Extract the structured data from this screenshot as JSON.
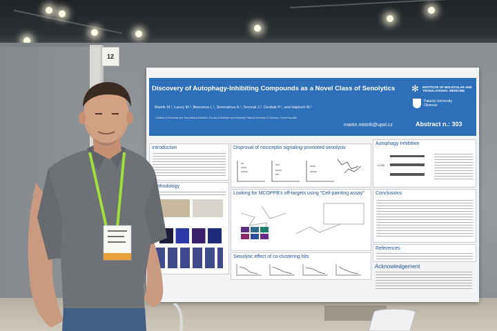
{
  "booth": {
    "number": "12"
  },
  "poster": {
    "title": "Discovery of Autophagy-Inhibiting Compounds as a Novel Class of Senolytics",
    "authors": "Mistrik M.¹, Lacey M.², Beresova L.¹, Srovnalova A.¹, Srovnal J.¹, Dzubak P.¹, and Hajduch M.¹",
    "affiliation": "¹ Institute of Molecular and Translational Medicine, Faculty of Medicine and Dentistry, Palacký University in Olomouc, Czech Republic",
    "email": "martin.mistrik@upol.cz",
    "abstract_number": "Abstract n.: 303",
    "institute_name": "INSTITUTE OF MOLECULAR AND TRANSLATIONAL MEDICINE",
    "university_name": "Palacký University Olomouc",
    "sections": {
      "introduction": "Introduction",
      "disproval": "Disproval of nociceptin signaling-promoted senolysis",
      "autophagy": "Autophagy Inhibition",
      "methodology": "Methodology",
      "off_targets": "Looking for MCOPPB's off-targets using \"Cell-painting assay\"",
      "conclusions": "Conclusions",
      "references": "References",
      "acknowledgement": "Acknowledgement",
      "senolytic": "Senolytic effect of co-clustering hits"
    }
  },
  "colors": {
    "poster_header": "#2d6fb8",
    "section_heading": "#1d4f8f",
    "lanyard": "#9fe03a",
    "shirt": "#6e7175",
    "wall": "#8b8f93"
  }
}
